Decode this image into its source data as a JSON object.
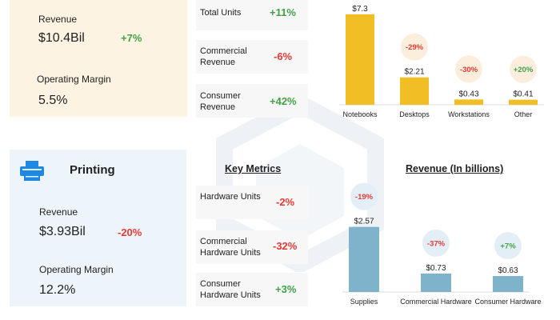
{
  "pc": {
    "revenue_label": "Revenue",
    "revenue_value": "$10.4Bil",
    "revenue_change": "+7%",
    "margin_label": "Operating Margin",
    "margin_value": "5.5%",
    "metrics": [
      {
        "label": "Total Units",
        "value": "+11%",
        "status": "positive"
      },
      {
        "label": "Commercial Revenue",
        "value": "-6%",
        "status": "negative"
      },
      {
        "label": "Consumer Revenue",
        "value": "+42%",
        "status": "positive"
      }
    ]
  },
  "printing": {
    "title": "Printing",
    "icon": "printer-icon",
    "revenue_label": "Revenue",
    "revenue_value": "$3.93Bil",
    "revenue_change": "-20%",
    "margin_label": "Operating Margin",
    "margin_value": "12.2%",
    "key_metrics_title": "Key Metrics",
    "revenue_chart_title": "Revenue (In billions)",
    "metrics": [
      {
        "label": "Hardware Units",
        "value": "-2%",
        "status": "negative"
      },
      {
        "label": "Commercial Hardware Units",
        "value": "-32%",
        "status": "negative"
      },
      {
        "label": "Consumer Hardware Units",
        "value": "+3%",
        "status": "positive"
      }
    ]
  },
  "colors": {
    "pc_bar": "#f1bf25",
    "printing_bar": "#7fb3cc",
    "positive": "#43a047",
    "negative": "#e53935",
    "pc_bubble": "#fbeedd",
    "printing_bubble": "#e3eef6"
  },
  "chart_data": [
    {
      "type": "bar",
      "categories": [
        "Notebooks",
        "Desktops",
        "Workstations",
        "Other"
      ],
      "values": [
        7.3,
        2.21,
        0.43,
        0.41
      ],
      "value_labels": [
        "$7.3",
        "$2.21",
        "$0.43",
        "$0.41"
      ],
      "changes": [
        "",
        "-29%",
        "-30%",
        "+20%"
      ],
      "change_status": [
        "",
        "negative",
        "negative",
        "positive"
      ],
      "ylim": [
        0,
        10
      ]
    },
    {
      "type": "bar",
      "title": "Revenue (In billions)",
      "categories": [
        "Supplies",
        "Commercial Hardware",
        "Consumer Hardware"
      ],
      "values": [
        2.57,
        0.73,
        0.63
      ],
      "value_labels": [
        "$2.57",
        "$0.73",
        "$0.63"
      ],
      "changes": [
        "-19%",
        "-37%",
        "+7%"
      ],
      "change_status": [
        "negative",
        "negative",
        "positive"
      ],
      "ylim": [
        0,
        3
      ]
    }
  ]
}
